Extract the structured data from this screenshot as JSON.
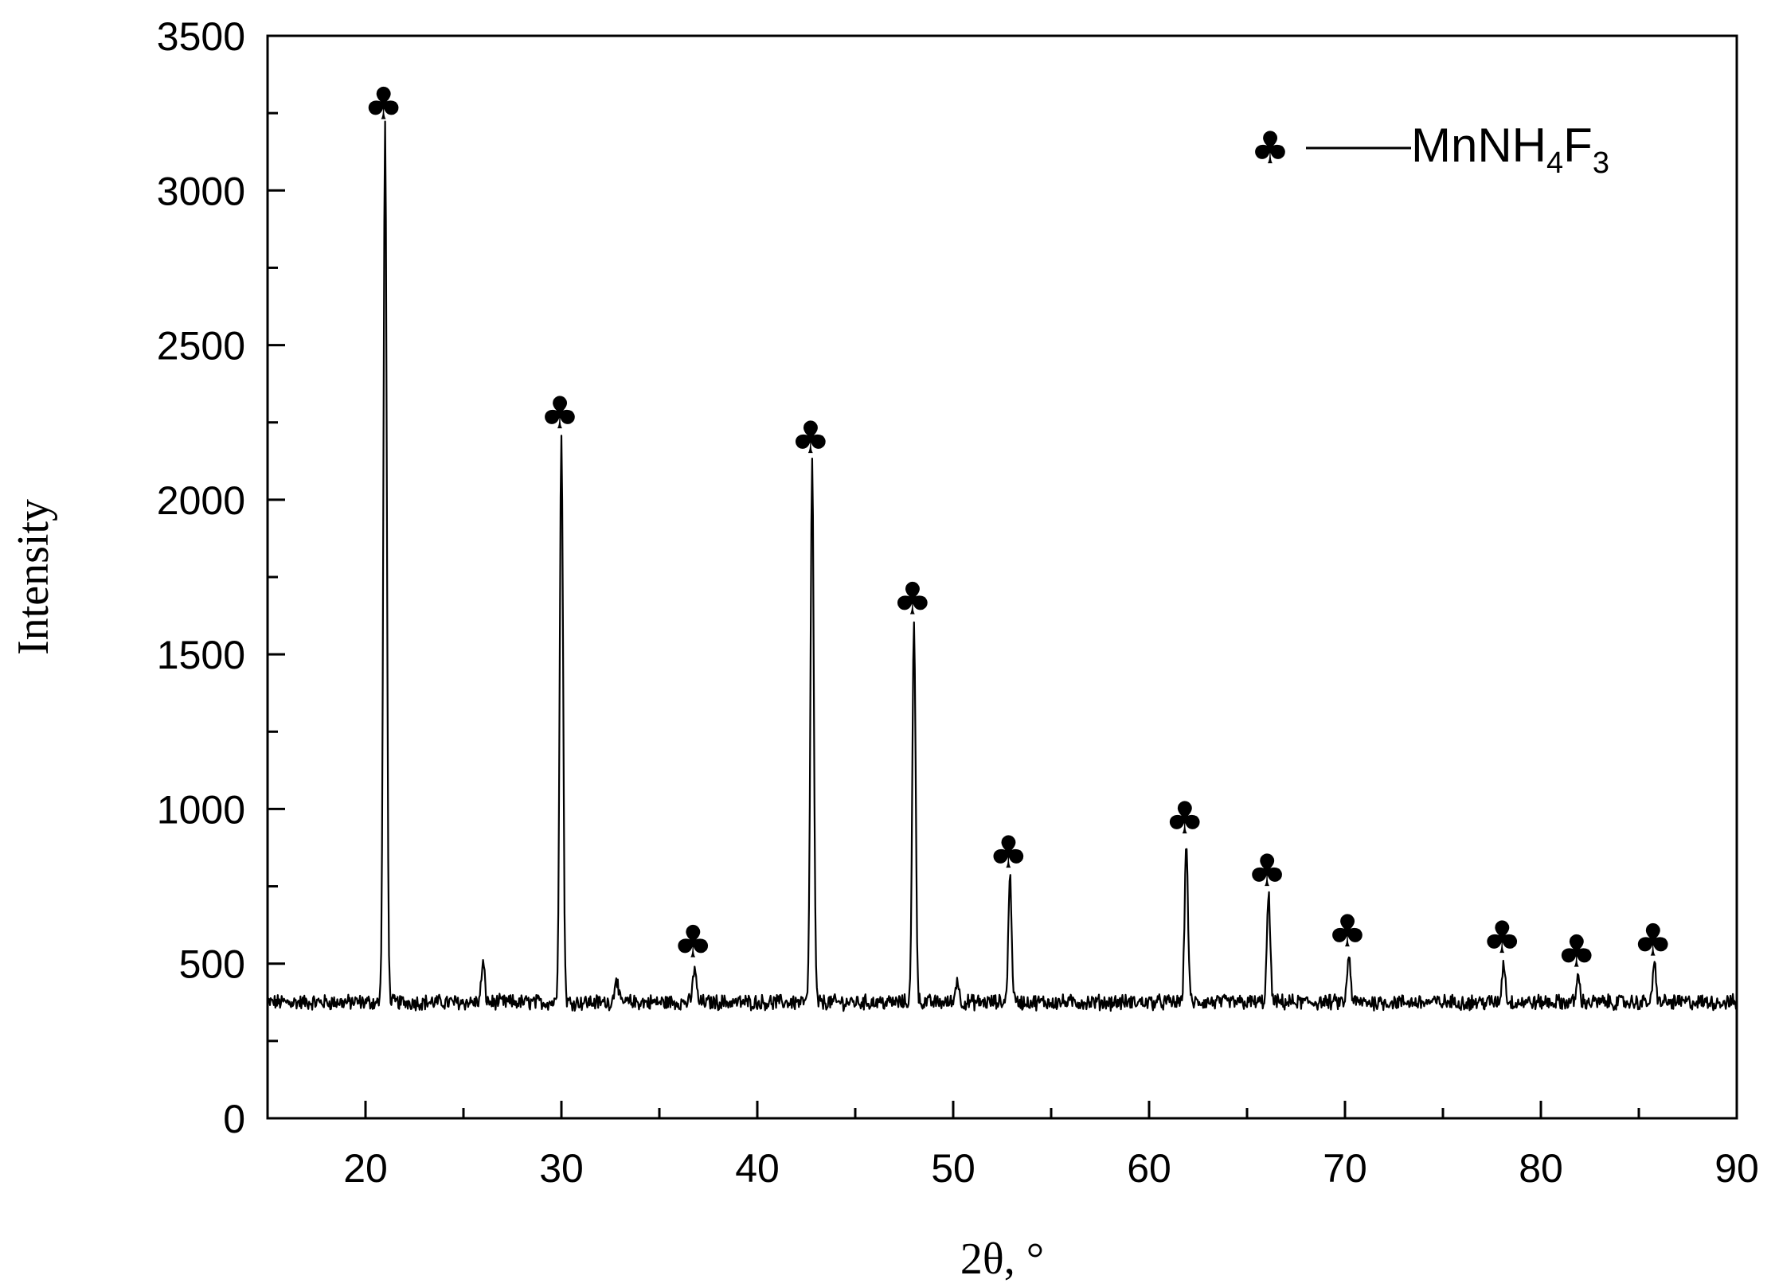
{
  "chart_data": {
    "type": "line",
    "xlabel": "2θ, °",
    "ylabel": "Intensity",
    "xlim": [
      15,
      90
    ],
    "ylim": [
      0,
      3500
    ],
    "x_ticks": [
      20,
      30,
      40,
      50,
      60,
      70,
      80,
      90
    ],
    "y_ticks": [
      0,
      500,
      1000,
      1500,
      2000,
      2500,
      3000,
      3500
    ],
    "x_minor_step": 5,
    "y_minor_step": 250,
    "grid": false,
    "line_color": "#000000",
    "baseline": 375,
    "noise_amplitude": 22,
    "peaks": [
      {
        "x": 21.0,
        "y": 3200
      },
      {
        "x": 26.0,
        "y": 500
      },
      {
        "x": 30.0,
        "y": 2200
      },
      {
        "x": 32.8,
        "y": 460
      },
      {
        "x": 36.8,
        "y": 490
      },
      {
        "x": 42.8,
        "y": 2120
      },
      {
        "x": 48.0,
        "y": 1600
      },
      {
        "x": 50.2,
        "y": 450
      },
      {
        "x": 52.9,
        "y": 780
      },
      {
        "x": 61.9,
        "y": 890
      },
      {
        "x": 66.1,
        "y": 720
      },
      {
        "x": 70.2,
        "y": 525
      },
      {
        "x": 78.1,
        "y": 505
      },
      {
        "x": 81.9,
        "y": 460
      },
      {
        "x": 85.8,
        "y": 495
      }
    ],
    "markers": [
      {
        "x": 21.0,
        "y": 3200,
        "symbol": "♣"
      },
      {
        "x": 30.0,
        "y": 2200,
        "symbol": "♣"
      },
      {
        "x": 36.8,
        "y": 490,
        "symbol": "♣"
      },
      {
        "x": 42.8,
        "y": 2120,
        "symbol": "♣"
      },
      {
        "x": 48.0,
        "y": 1600,
        "symbol": "♣"
      },
      {
        "x": 52.9,
        "y": 780,
        "symbol": "♣"
      },
      {
        "x": 61.9,
        "y": 890,
        "symbol": "♣"
      },
      {
        "x": 66.1,
        "y": 720,
        "symbol": "♣"
      },
      {
        "x": 70.2,
        "y": 525,
        "symbol": "♣"
      },
      {
        "x": 78.1,
        "y": 505,
        "symbol": "♣"
      },
      {
        "x": 81.9,
        "y": 460,
        "symbol": "♣"
      },
      {
        "x": 85.8,
        "y": 495,
        "symbol": "♣"
      }
    ],
    "legend": {
      "position": "top-right",
      "symbol": "♣",
      "label_main": "MnNH",
      "label_sub1": "4",
      "label_mid": "F",
      "label_sub2": "3"
    }
  }
}
